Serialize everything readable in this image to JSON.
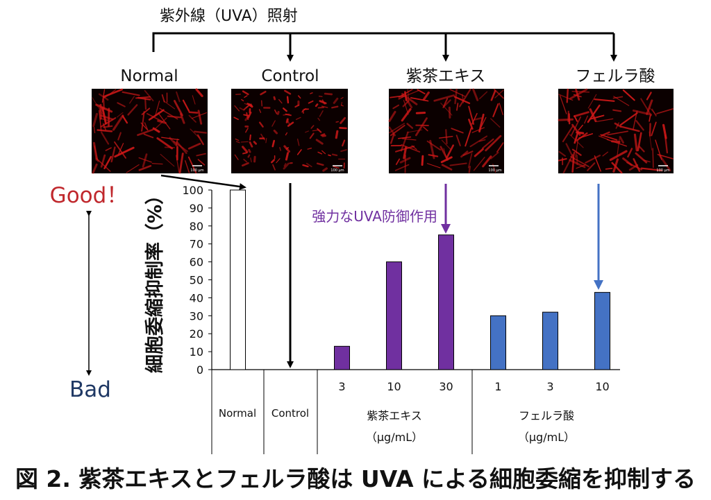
{
  "header": {
    "uva_label": "紫外線（UVA）照射"
  },
  "panels": [
    {
      "label": "Normal",
      "scale": "100 μm"
    },
    {
      "label": "Control",
      "scale": "100 μm"
    },
    {
      "label": "紫茶エキス",
      "scale": "100 μm"
    },
    {
      "label": "フェルラ酸",
      "scale": "100 μm"
    }
  ],
  "side": {
    "good": "Good！",
    "bad": "Bad"
  },
  "annotation": "強力なUVA防御作用",
  "caption": "図 2. 紫茶エキスとフェルラ酸は UVA による細胞委縮を抑制する",
  "colors": {
    "purple": "#7030a0",
    "blue": "#4472c4",
    "good": "#c0282d",
    "bad": "#1f3864",
    "cell": "#d01818"
  },
  "chart_data": {
    "type": "bar",
    "ylabel": "細胞委縮抑制率（%）",
    "ylim": [
      0,
      100
    ],
    "yticks": [
      "0",
      "10",
      "20",
      "30",
      "40",
      "50",
      "60",
      "70",
      "80",
      "90",
      "100"
    ],
    "groups": [
      {
        "name": "Normal",
        "unit": "",
        "cats": [
          ""
        ],
        "values": [
          100
        ],
        "color": "#ffffff"
      },
      {
        "name": "Control",
        "unit": "",
        "cats": [
          ""
        ],
        "values": [
          0
        ],
        "color": "#ffffff"
      },
      {
        "name": "紫茶エキス",
        "unit": "（μg/mL）",
        "cats": [
          "3",
          "10",
          "30"
        ],
        "values": [
          13,
          60,
          75
        ],
        "color": "#7030a0"
      },
      {
        "name": "フェルラ酸",
        "unit": "（μg/mL）",
        "cats": [
          "1",
          "3",
          "10"
        ],
        "values": [
          30,
          32,
          43
        ],
        "color": "#4472c4"
      }
    ]
  }
}
